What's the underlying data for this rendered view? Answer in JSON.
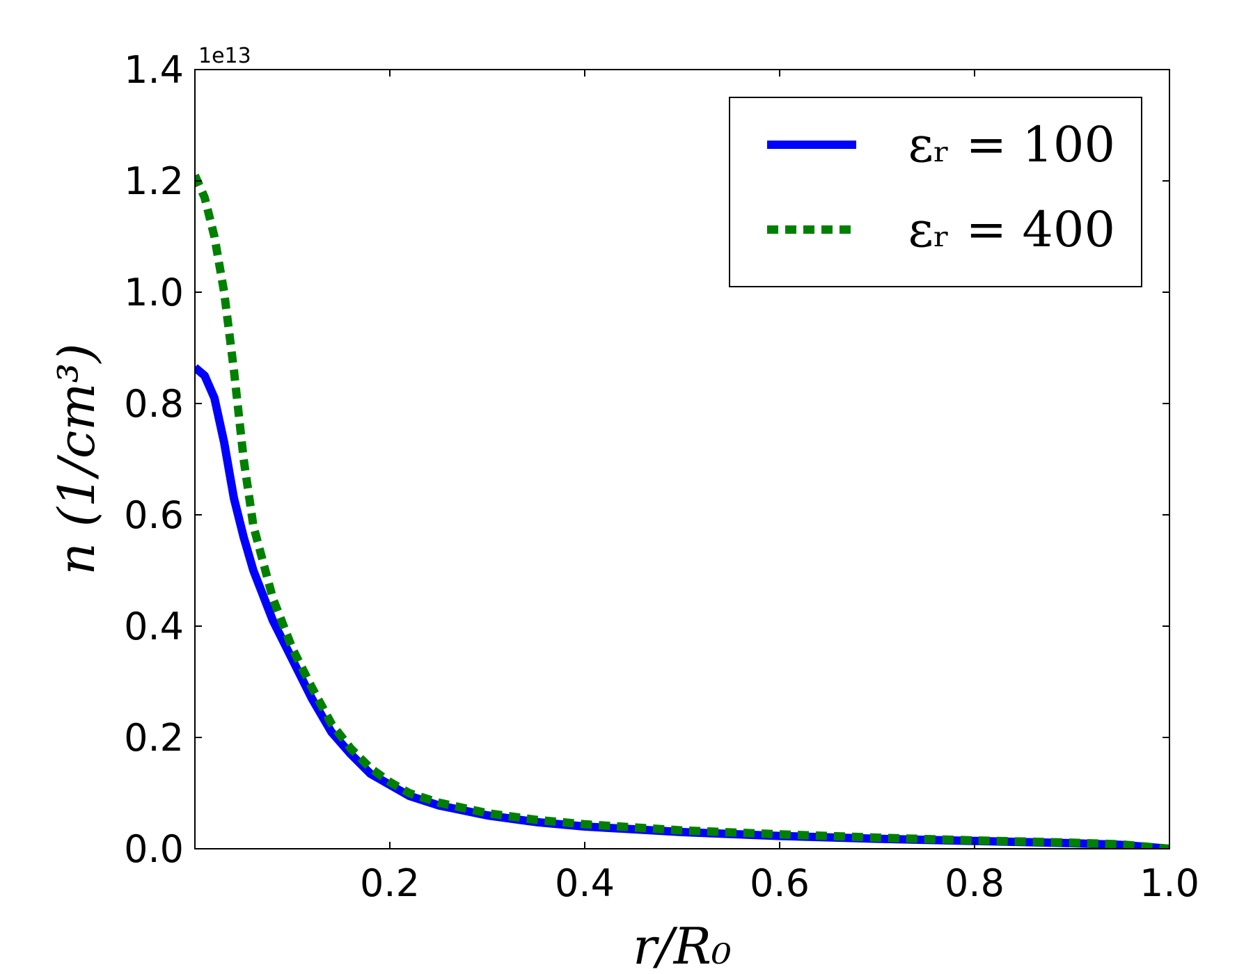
{
  "chart_data": {
    "type": "line",
    "offset_text": "1e13",
    "xlabel": "r/R₀",
    "ylabel": "n (1/cm³)",
    "xlim": [
      0.0,
      1.0
    ],
    "ylim": [
      0.0,
      1.4
    ],
    "x_ticks": [
      "0.2",
      "0.4",
      "0.6",
      "0.8",
      "1.0"
    ],
    "y_ticks": [
      "0.0",
      "0.2",
      "0.4",
      "0.6",
      "0.8",
      "1.0",
      "1.2",
      "1.4"
    ],
    "legend_placement": "top-right",
    "grid": false,
    "series": [
      {
        "name": "εᵣ = 100",
        "style": "solid",
        "color": "#0000ff",
        "points": [
          [
            0.0,
            0.865
          ],
          [
            0.01,
            0.85
          ],
          [
            0.02,
            0.81
          ],
          [
            0.03,
            0.73
          ],
          [
            0.04,
            0.63
          ],
          [
            0.05,
            0.56
          ],
          [
            0.06,
            0.5
          ],
          [
            0.08,
            0.41
          ],
          [
            0.1,
            0.34
          ],
          [
            0.12,
            0.27
          ],
          [
            0.14,
            0.21
          ],
          [
            0.16,
            0.17
          ],
          [
            0.18,
            0.135
          ],
          [
            0.2,
            0.115
          ],
          [
            0.22,
            0.095
          ],
          [
            0.25,
            0.078
          ],
          [
            0.3,
            0.06
          ],
          [
            0.35,
            0.048
          ],
          [
            0.4,
            0.04
          ],
          [
            0.5,
            0.03
          ],
          [
            0.6,
            0.023
          ],
          [
            0.7,
            0.018
          ],
          [
            0.8,
            0.014
          ],
          [
            0.9,
            0.01
          ],
          [
            0.95,
            0.007
          ],
          [
            1.0,
            0.0
          ]
        ]
      },
      {
        "name": "εᵣ = 400",
        "style": "dotted",
        "color": "#008000",
        "points": [
          [
            0.0,
            1.21
          ],
          [
            0.01,
            1.17
          ],
          [
            0.02,
            1.1
          ],
          [
            0.03,
            1.0
          ],
          [
            0.04,
            0.86
          ],
          [
            0.05,
            0.7
          ],
          [
            0.06,
            0.58
          ],
          [
            0.08,
            0.45
          ],
          [
            0.1,
            0.36
          ],
          [
            0.12,
            0.29
          ],
          [
            0.14,
            0.225
          ],
          [
            0.16,
            0.18
          ],
          [
            0.18,
            0.145
          ],
          [
            0.2,
            0.12
          ],
          [
            0.22,
            0.1
          ],
          [
            0.25,
            0.083
          ],
          [
            0.3,
            0.064
          ],
          [
            0.35,
            0.052
          ],
          [
            0.4,
            0.044
          ],
          [
            0.5,
            0.033
          ],
          [
            0.6,
            0.026
          ],
          [
            0.7,
            0.02
          ],
          [
            0.8,
            0.015
          ],
          [
            0.9,
            0.011
          ],
          [
            0.95,
            0.008
          ],
          [
            1.0,
            0.0
          ]
        ]
      }
    ]
  }
}
